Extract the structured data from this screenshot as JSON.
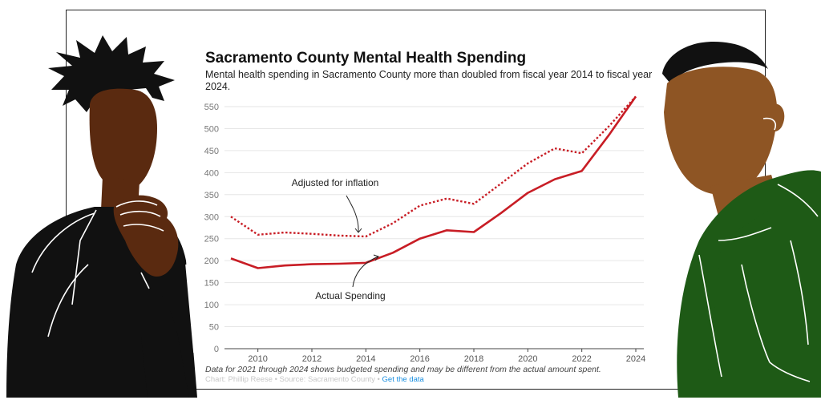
{
  "chart_data": {
    "type": "line",
    "title": "Sacramento County Mental Health Spending",
    "subtitle": "Mental health spending in Sacramento County more than doubled from fiscal year 2014 to fiscal year 2024.",
    "xlabel": "",
    "ylabel": "",
    "xlim": [
      2009,
      2024
    ],
    "ylim": [
      0,
      570
    ],
    "x_ticks": [
      2010,
      2012,
      2014,
      2016,
      2018,
      2020,
      2022,
      2024
    ],
    "y_ticks": [
      0,
      50,
      100,
      150,
      200,
      250,
      300,
      350,
      400,
      450,
      500,
      550
    ],
    "x": [
      2009,
      2010,
      2011,
      2012,
      2013,
      2014,
      2015,
      2016,
      2017,
      2018,
      2019,
      2020,
      2021,
      2022,
      2023,
      2024
    ],
    "series": [
      {
        "name": "Actual Spending",
        "style": "solid",
        "color": "#c81d25",
        "values": [
          205,
          183,
          189,
          192,
          193,
          195,
          218,
          250,
          269,
          265,
          308,
          354,
          385,
          404,
          485,
          573
        ]
      },
      {
        "name": "Adjusted for inflation",
        "style": "dotted",
        "color": "#c81d25",
        "values": [
          300,
          259,
          264,
          261,
          257,
          255,
          285,
          325,
          341,
          329,
          375,
          421,
          455,
          444,
          505,
          573
        ]
      }
    ],
    "annotations": [
      {
        "text": "Adjusted for inflation",
        "series": "Adjusted for inflation"
      },
      {
        "text": "Actual Spending",
        "series": "Actual Spending"
      }
    ],
    "note": "Data for 2021 through 2024 shows budgeted spending and may be different from the actual amount spent.",
    "credit_prefix": "Chart: Phillip Reese • Source: Sacramento County •",
    "credit_link": "Get the data"
  },
  "colors": {
    "line": "#c81d25",
    "grid": "#e6e6e6",
    "link": "#1a8fe0"
  },
  "figures": {
    "left": "person-thinking-illustration",
    "right": "person-green-jacket-illustration"
  }
}
